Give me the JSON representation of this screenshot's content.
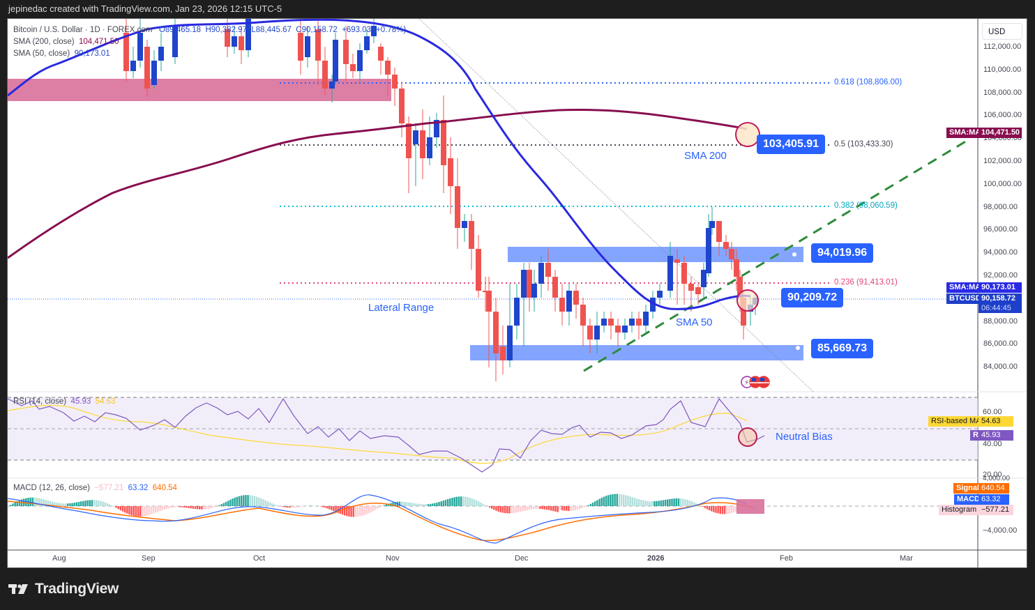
{
  "header": {
    "attribution": "jepinedac created with TradingView.com, Jan 23, 2026 12:15 UTC-5"
  },
  "legend": {
    "symbol": "Bitcoin / U.S. Dollar · 1D · FOREX.com",
    "open": "O89,465.18",
    "high": "H90,382.97",
    "low": "L88,445.67",
    "close": "C90,158.72",
    "change": "+693.03 (+0.78%)",
    "sma200_label": "SMA (200, close)",
    "sma200_value": "104,471.50",
    "sma50_label": "SMA (50, close)",
    "sma50_value": "90,173.01"
  },
  "price_axis": {
    "currency": "USD",
    "ticks": [
      "112,000.00",
      "110,000.00",
      "108,000.00",
      "106,000.00",
      "104,000.00",
      "102,000.00",
      "100,000.00",
      "98,000.00",
      "96,000.00",
      "94,000.00",
      "92,000.00",
      "90,000.00",
      "88,000.00",
      "86,000.00",
      "84,000.00"
    ],
    "badges": {
      "sma200": {
        "label": "SMA:MA",
        "value": "104,471.50",
        "color": "#880e4f"
      },
      "sma50": {
        "label": "SMA:MA",
        "value": "90,173.01",
        "color": "#2a2ae6"
      },
      "price": {
        "label": "BTCUSD",
        "value": "90,158.72",
        "countdown": "06:44:45",
        "color": "#1e3fc9"
      }
    }
  },
  "fibonacci": [
    {
      "label": "0.618 (108,806.00)",
      "color": "#2962ff"
    },
    {
      "label": "0.5 (103,433.30)",
      "color": "#434651"
    },
    {
      "label": "0.382 (98,060.59)",
      "color": "#00bcd4"
    },
    {
      "label": "0.236 (91,413.01)",
      "color": "#e0457b"
    }
  ],
  "annotations": {
    "callout_103": "103,405.91",
    "callout_94": "94,019.96",
    "callout_90": "90,209.72",
    "callout_85": "85,669.73",
    "sma200_text": "SMA 200",
    "sma50_text": "SMA 50",
    "lateral_range": "Lateral Range",
    "neutral_bias": "Neutral Bias"
  },
  "rsi": {
    "title": "RSI (14, close)",
    "rsi_value": "45.93",
    "ma_value": "54.63",
    "ticks": [
      "60.00",
      "40.00",
      "20.00"
    ],
    "badge_ma_label": "RSI-based MA",
    "badge_ma_value": "54.63",
    "badge_rsi_label": "RSI",
    "badge_rsi_value": "45.93"
  },
  "macd": {
    "title": "MACD (12, 26, close)",
    "histogram_value": "−577.21",
    "macd_value": "63.32",
    "signal_value": "640.54",
    "ticks": [
      "4,000.00",
      "−4,000.00"
    ],
    "badge_signal_label": "Signal",
    "badge_signal_value": "640.54",
    "badge_macd_label": "MACD",
    "badge_macd_value": "63.32",
    "badge_hist_label": "Histogram",
    "badge_hist_value": "−577.21"
  },
  "time_axis": {
    "labels": [
      "Aug",
      "Sep",
      "Oct",
      "Nov",
      "Dec",
      "2026",
      "Feb",
      "Mar"
    ]
  },
  "footer": {
    "brand": "TradingView"
  },
  "colors": {
    "up_candle": "#1e45cc",
    "down_candle": "#ef5350",
    "sma50": "#2929e0",
    "sma200": "#880e4f",
    "range_zone": "#6f95ff",
    "resistance_zone": "#d9709b",
    "trendline": "#2e8b3a",
    "rsi_line": "#7e57c2",
    "rsi_ma": "#fdd835",
    "macd_line": "#2962ff",
    "signal_line": "#ff6d00"
  },
  "chart_data": {
    "type": "candlestick",
    "title": "Bitcoin / U.S. Dollar · 1D · FOREX.com",
    "xlabel": "",
    "ylabel": "USD",
    "ylim": [
      82500,
      113000
    ],
    "x_ticks": [
      "Aug",
      "Sep",
      "Oct",
      "Nov",
      "Dec",
      "2026",
      "Feb",
      "Mar"
    ],
    "last_bar": {
      "open": 89465.18,
      "high": 90382.97,
      "low": 88445.67,
      "close": 90158.72,
      "change": 693.03,
      "change_pct": 0.78
    },
    "series": [
      {
        "name": "SMA 200",
        "last": 104471.5,
        "x": [
          "Aug",
          "Sep",
          "Oct",
          "Nov",
          "Dec",
          "2026",
          "Jan 23"
        ],
        "values": [
          93000,
          98500,
          101000,
          103500,
          105500,
          106000,
          104471.5
        ]
      },
      {
        "name": "SMA 50",
        "last": 90173.01,
        "x": [
          "Aug",
          "Sep",
          "Oct",
          "Nov",
          "Dec",
          "2026",
          "Jan 23"
        ],
        "values": [
          108000,
          112000,
          113500,
          111000,
          96000,
          89300,
          90173.01
        ]
      }
    ],
    "levels": {
      "fib_0.618": 108806.0,
      "fib_0.5": 103433.3,
      "fib_0.382": 98060.59,
      "fib_0.236": 91413.01,
      "range_top": 94019.96,
      "range_bottom": 85669.73,
      "marked_price": 90209.72,
      "sma200_marker": 103405.91
    },
    "indicators": {
      "rsi": {
        "period": 14,
        "value": 45.93,
        "ma": 54.63,
        "bands": [
          70,
          50,
          30
        ]
      },
      "macd": {
        "fast": 12,
        "slow": 26,
        "macd": 63.32,
        "signal": 640.54,
        "histogram": -577.21
      }
    },
    "annotations": [
      "Lateral Range",
      "SMA 200",
      "SMA 50",
      "Neutral Bias"
    ]
  }
}
